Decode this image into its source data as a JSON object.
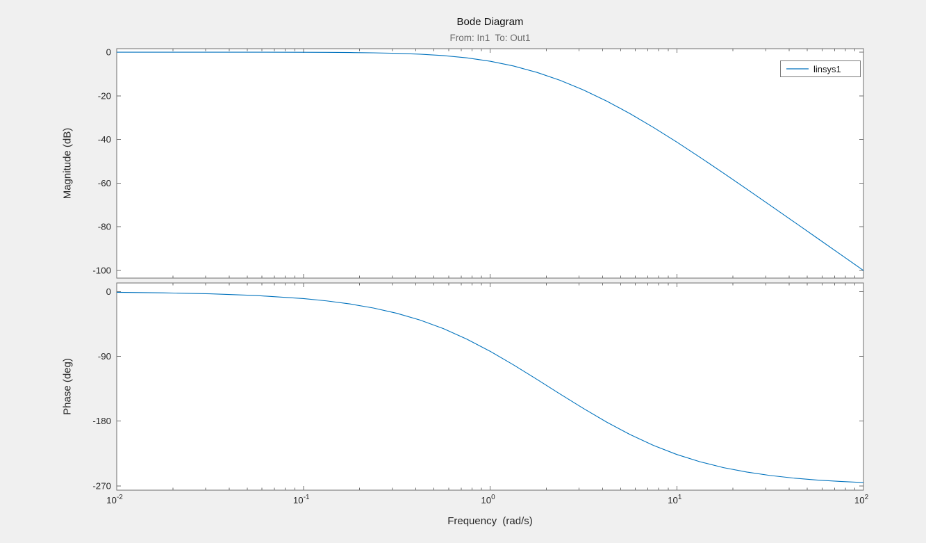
{
  "figure": {
    "title": "Bode Diagram",
    "subtitle": "From: In1  To: Out1",
    "legend_entries": [
      "linsys1"
    ],
    "legend_position": "northeast",
    "colors": {
      "background": "#f0f0f0",
      "axes_background": "#ffffff",
      "axis": "#6e6e6e",
      "tick_label": "#262626",
      "subtitle": "#6b6b6b",
      "line": "#0072bd"
    }
  },
  "chart_data": [
    {
      "type": "line",
      "name": "magnitude",
      "ylabel": "Magnitude (dB)",
      "xlabel": "",
      "xscale": "log",
      "grid": false,
      "xlim": [
        0.01,
        100
      ],
      "ylim": [
        -103.5,
        1.6
      ],
      "xticks": [
        0.01,
        0.1,
        1,
        10,
        100
      ],
      "xtick_labels": [
        "10^{-2}",
        "10^{-1}",
        "10^{0}",
        "10^{1}",
        "10^{2}"
      ],
      "show_xtick_labels": false,
      "yticks": [
        0,
        -20,
        -40,
        -60,
        -80,
        -100
      ],
      "series": [
        {
          "name": "linsys1",
          "x": [
            0.01,
            0.0178,
            0.0316,
            0.0562,
            0.1,
            0.133,
            0.178,
            0.237,
            0.316,
            0.422,
            0.562,
            0.75,
            1,
            1.33,
            1.78,
            2.37,
            3.16,
            4.22,
            5.62,
            7.5,
            10,
            13.3,
            17.8,
            23.7,
            31.6,
            42.2,
            56.2,
            75,
            100
          ],
          "y": [
            0.0,
            0.0,
            -0.01,
            -0.02,
            -0.06,
            -0.1,
            -0.18,
            -0.31,
            -0.54,
            -0.93,
            -1.58,
            -2.61,
            -4.15,
            -6.31,
            -9.25,
            -12.9,
            -17.3,
            -22.45,
            -28.17,
            -34.48,
            -41.18,
            -48.13,
            -55.42,
            -62.71,
            -70.11,
            -77.59,
            -85.03,
            -92.53,
            -100.01
          ]
        }
      ]
    },
    {
      "type": "line",
      "name": "phase",
      "ylabel": "Phase (deg)",
      "xlabel": "Frequency  (rad/s)",
      "xscale": "log",
      "grid": false,
      "xlim": [
        0.01,
        100
      ],
      "ylim": [
        -276,
        12
      ],
      "xticks": [
        0.01,
        0.1,
        1,
        10,
        100
      ],
      "xtick_labels": [
        "10^{-2}",
        "10^{-1}",
        "10^{0}",
        "10^{1}",
        "10^{2}"
      ],
      "show_xtick_labels": true,
      "yticks": [
        0,
        -90,
        -180,
        -270
      ],
      "series": [
        {
          "name": "linsys1",
          "x": [
            0.01,
            0.0178,
            0.0316,
            0.0562,
            0.1,
            0.133,
            0.178,
            0.237,
            0.316,
            0.422,
            0.562,
            0.75,
            1,
            1.33,
            1.78,
            2.37,
            3.16,
            4.22,
            5.62,
            7.5,
            10,
            13.3,
            17.8,
            23.7,
            31.6,
            42.2,
            56.2,
            75,
            100
          ],
          "y": [
            -0.97,
            -1.73,
            -3.08,
            -5.47,
            -9.72,
            -12.9,
            -17.2,
            -22.8,
            -30.1,
            -39.6,
            -51.4,
            -66.0,
            -82.9,
            -101.6,
            -121.9,
            -142.3,
            -162.4,
            -181.5,
            -198.7,
            -213.8,
            -226.4,
            -236.5,
            -244.7,
            -250.8,
            -255.6,
            -259.2,
            -261.9,
            -263.9,
            -265.4
          ]
        }
      ]
    }
  ]
}
